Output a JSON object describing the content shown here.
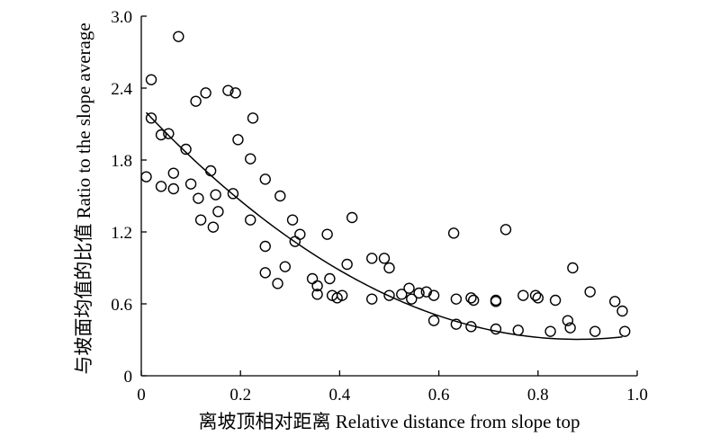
{
  "chart_data": {
    "type": "scatter",
    "title": "",
    "xlabel": "离坡顶相对距离 Relative distance from slope top",
    "ylabel": "与坡面均值的比值 Ratio to the slope average",
    "xlim": [
      0,
      1.0
    ],
    "ylim": [
      0,
      3.0
    ],
    "x_ticks": [
      "0",
      "0.2",
      "0.4",
      "0.6",
      "0.8",
      "1.0"
    ],
    "y_ticks": [
      "0",
      "0.6",
      "1.2",
      "1.8",
      "2.4",
      "3.0"
    ],
    "x_tick_values": [
      0,
      0.2,
      0.4,
      0.6,
      0.8,
      1.0
    ],
    "y_tick_values": [
      0,
      0.6,
      1.2,
      1.8,
      2.4,
      3.0
    ],
    "grid": false,
    "legend": "none",
    "marker": "open-circle",
    "series": [
      {
        "points": [
          [
            0.01,
            1.66
          ],
          [
            0.02,
            2.47
          ],
          [
            0.02,
            2.15
          ],
          [
            0.04,
            1.58
          ],
          [
            0.04,
            2.01
          ],
          [
            0.055,
            2.02
          ],
          [
            0.065,
            1.69
          ],
          [
            0.065,
            1.56
          ],
          [
            0.075,
            2.83
          ],
          [
            0.09,
            1.89
          ],
          [
            0.1,
            1.6
          ],
          [
            0.11,
            2.29
          ],
          [
            0.115,
            1.48
          ],
          [
            0.12,
            1.3
          ],
          [
            0.13,
            2.36
          ],
          [
            0.14,
            1.71
          ],
          [
            0.145,
            1.24
          ],
          [
            0.15,
            1.51
          ],
          [
            0.155,
            1.37
          ],
          [
            0.175,
            2.38
          ],
          [
            0.185,
            1.52
          ],
          [
            0.19,
            2.36
          ],
          [
            0.195,
            1.97
          ],
          [
            0.22,
            1.81
          ],
          [
            0.22,
            1.3
          ],
          [
            0.225,
            2.15
          ],
          [
            0.25,
            1.64
          ],
          [
            0.25,
            1.08
          ],
          [
            0.25,
            0.86
          ],
          [
            0.275,
            0.77
          ],
          [
            0.28,
            1.5
          ],
          [
            0.29,
            0.91
          ],
          [
            0.305,
            1.3
          ],
          [
            0.31,
            1.12
          ],
          [
            0.32,
            1.18
          ],
          [
            0.345,
            0.81
          ],
          [
            0.355,
            0.75
          ],
          [
            0.355,
            0.68
          ],
          [
            0.375,
            1.18
          ],
          [
            0.38,
            0.81
          ],
          [
            0.385,
            0.67
          ],
          [
            0.395,
            0.65
          ],
          [
            0.405,
            0.67
          ],
          [
            0.415,
            0.93
          ],
          [
            0.425,
            1.32
          ],
          [
            0.465,
            0.98
          ],
          [
            0.465,
            0.64
          ],
          [
            0.49,
            0.98
          ],
          [
            0.5,
            0.9
          ],
          [
            0.5,
            0.67
          ],
          [
            0.525,
            0.68
          ],
          [
            0.54,
            0.73
          ],
          [
            0.545,
            0.64
          ],
          [
            0.56,
            0.69
          ],
          [
            0.575,
            0.7
          ],
          [
            0.59,
            0.46
          ],
          [
            0.59,
            0.67
          ],
          [
            0.63,
            1.19
          ],
          [
            0.635,
            0.64
          ],
          [
            0.635,
            0.43
          ],
          [
            0.665,
            0.65
          ],
          [
            0.665,
            0.41
          ],
          [
            0.67,
            0.63
          ],
          [
            0.715,
            0.62
          ],
          [
            0.715,
            0.63
          ],
          [
            0.715,
            0.39
          ],
          [
            0.735,
            1.22
          ],
          [
            0.76,
            0.38
          ],
          [
            0.77,
            0.67
          ],
          [
            0.795,
            0.67
          ],
          [
            0.8,
            0.65
          ],
          [
            0.825,
            0.37
          ],
          [
            0.835,
            0.63
          ],
          [
            0.86,
            0.46
          ],
          [
            0.865,
            0.4
          ],
          [
            0.87,
            0.9
          ],
          [
            0.905,
            0.7
          ],
          [
            0.915,
            0.37
          ],
          [
            0.955,
            0.62
          ],
          [
            0.97,
            0.54
          ],
          [
            0.975,
            0.37
          ]
        ]
      }
    ],
    "fit_curve": {
      "type": "quadratic",
      "coefficients": {
        "a": 2.5,
        "b": -4.4,
        "c": 2.24
      },
      "x_range": [
        0.01,
        0.97
      ]
    }
  }
}
